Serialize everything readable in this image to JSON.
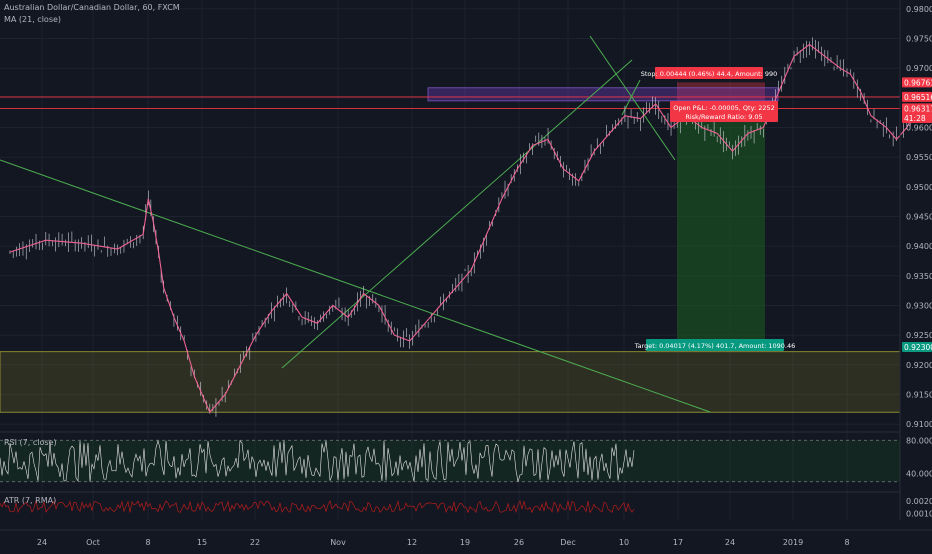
{
  "header": {
    "title": "Australian Dollar/Canadian Dollar, 60, FXCM",
    "ma_label": "MA (21, close)"
  },
  "chart_data": [
    {
      "type": "line",
      "title": "Australian Dollar/Canadian Dollar, 60, FXCM",
      "series": [
        {
          "name": "MA (21, close)",
          "x": [
            1,
            8,
            15,
            22,
            27,
            28,
            29,
            30,
            31,
            33,
            35,
            37,
            40,
            43,
            46,
            49,
            52,
            55,
            58,
            61,
            64,
            67,
            70,
            73,
            76,
            79,
            82,
            85,
            88,
            91,
            94,
            97,
            100,
            103,
            106,
            109,
            112,
            115,
            118,
            121,
            124,
            127,
            130,
            133,
            136,
            139,
            142,
            145,
            148,
            151,
            154,
            157,
            160,
            163,
            165,
            167,
            169,
            172,
            174,
            176,
            178
          ],
          "y": [
            0.939,
            0.941,
            0.9405,
            0.9395,
            0.942,
            0.948,
            0.944,
            0.939,
            0.933,
            0.928,
            0.924,
            0.918,
            0.912,
            0.915,
            0.92,
            0.925,
            0.929,
            0.932,
            0.928,
            0.927,
            0.93,
            0.928,
            0.932,
            0.93,
            0.925,
            0.924,
            0.927,
            0.93,
            0.933,
            0.936,
            0.942,
            0.948,
            0.953,
            0.957,
            0.958,
            0.953,
            0.951,
            0.956,
            0.959,
            0.962,
            0.9615,
            0.964,
            0.96,
            0.962,
            0.96,
            0.959,
            0.956,
            0.959,
            0.96,
            0.966,
            0.972,
            0.974,
            0.972,
            0.97,
            0.969,
            0.966,
            0.962,
            0.96,
            0.958,
            0.96,
            0.963
          ]
        }
      ],
      "x_ticks": [
        "24",
        "Oct",
        "8",
        "15",
        "22",
        "Nov",
        "12",
        "19",
        "26",
        "Dec",
        "10",
        "17",
        "24",
        "2019",
        "8"
      ],
      "y_ticks": [
        "0.98000",
        "0.97500",
        "0.97000",
        "0.96500",
        "0.96000",
        "0.95500",
        "0.95000",
        "0.94500",
        "0.94000",
        "0.93500",
        "0.93000",
        "0.92500",
        "0.92000",
        "0.91500",
        "0.91000"
      ],
      "ylim": [
        0.909,
        0.9815
      ],
      "price_tags": [
        {
          "value": 0.96761,
          "label": "0.96761",
          "color": "#f23645"
        },
        {
          "value": 0.96516,
          "label": "0.96516",
          "color": "#f23645"
        },
        {
          "value": 0.96322,
          "label": "0.96322",
          "color": "#f23645"
        },
        {
          "value": 0.9616,
          "label": "41:28",
          "color": "#f23645"
        },
        {
          "value": 0.96317,
          "label": "0.96317",
          "color": "#f23645"
        },
        {
          "value": 0.923,
          "label": "0.92300",
          "color": "#089981"
        }
      ],
      "annotations": {
        "stop": "Stop: 0.00444 (0.46%) 44.4, Amount: 990",
        "open_pl": "Open P&L: -0.00005, Qty: 2252",
        "risk_reward": "Risk/Reward Ratio: 9.05",
        "target": "Target: 0.04017 (4.17%) 401.7, Amount: 1090.46"
      },
      "colors": {
        "background": "#131722",
        "trendline": "#4caf50",
        "stop_zone": "#f23645",
        "target_zone": "#1b5e20",
        "ma": "#f06292",
        "candles": "#b2b5be"
      }
    },
    {
      "type": "line",
      "title": "RSI (7, close)",
      "y_ticks": [
        "80.0000",
        "40.0000"
      ],
      "levels": [
        80,
        30
      ],
      "ylim": [
        20,
        90
      ]
    },
    {
      "type": "line",
      "title": "ATR (7, RMA)",
      "y_ticks": [
        "0.0020",
        "0.0010"
      ],
      "ylim": [
        0.0005,
        0.0027
      ]
    }
  ]
}
